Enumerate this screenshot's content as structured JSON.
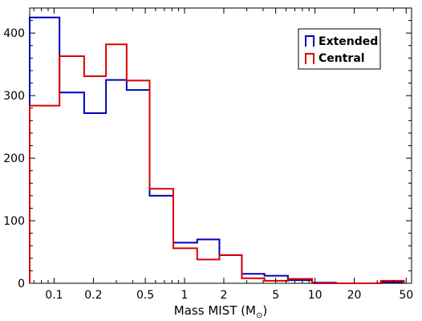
{
  "chart_data": {
    "type": "histogram",
    "xlabel": "Mass MIST (M",
    "xlabel_subscript": "⊙",
    "xlabel_close": ")",
    "ylabel": "",
    "x_scale": "log",
    "xlim": [
      0.065,
      55
    ],
    "ylim": [
      0,
      440
    ],
    "grid": false,
    "legend_position": "top-right",
    "x_ticks": [
      {
        "value": 0.1,
        "label": "0.1"
      },
      {
        "value": 0.2,
        "label": "0.2"
      },
      {
        "value": 0.5,
        "label": "0.5"
      },
      {
        "value": 1,
        "label": "1"
      },
      {
        "value": 2,
        "label": "2"
      },
      {
        "value": 5,
        "label": "5"
      },
      {
        "value": 10,
        "label": "10"
      },
      {
        "value": 20,
        "label": "20"
      },
      {
        "value": 50,
        "label": "50"
      }
    ],
    "x_minor_ticks": [
      0.07,
      0.08,
      0.09,
      0.3,
      0.4,
      0.6,
      0.7,
      0.8,
      0.9,
      3,
      4,
      6,
      7,
      8,
      9,
      30,
      40
    ],
    "y_ticks": [
      {
        "value": 0,
        "label": "0"
      },
      {
        "value": 100,
        "label": "100"
      },
      {
        "value": 200,
        "label": "200"
      },
      {
        "value": 300,
        "label": "300"
      },
      {
        "value": 400,
        "label": "400"
      }
    ],
    "y_minor_ticks": [
      20,
      40,
      60,
      80,
      120,
      140,
      160,
      180,
      220,
      240,
      260,
      280,
      320,
      340,
      360,
      380,
      420
    ],
    "bin_edges": [
      0.065,
      0.11,
      0.17,
      0.25,
      0.36,
      0.54,
      0.82,
      1.25,
      1.85,
      2.75,
      4.1,
      6.2,
      9.5,
      14.5,
      22,
      32,
      48
    ],
    "series": [
      {
        "name": "Extended",
        "color": "#0000bb",
        "values": [
          425,
          305,
          272,
          325,
          309,
          140,
          65,
          70,
          45,
          15,
          12,
          5,
          1,
          0,
          0,
          2
        ]
      },
      {
        "name": "Central",
        "color": "#dd0000",
        "values": [
          284,
          363,
          331,
          382,
          324,
          151,
          56,
          38,
          45,
          8,
          4,
          7,
          0,
          0,
          0,
          4
        ]
      }
    ]
  }
}
